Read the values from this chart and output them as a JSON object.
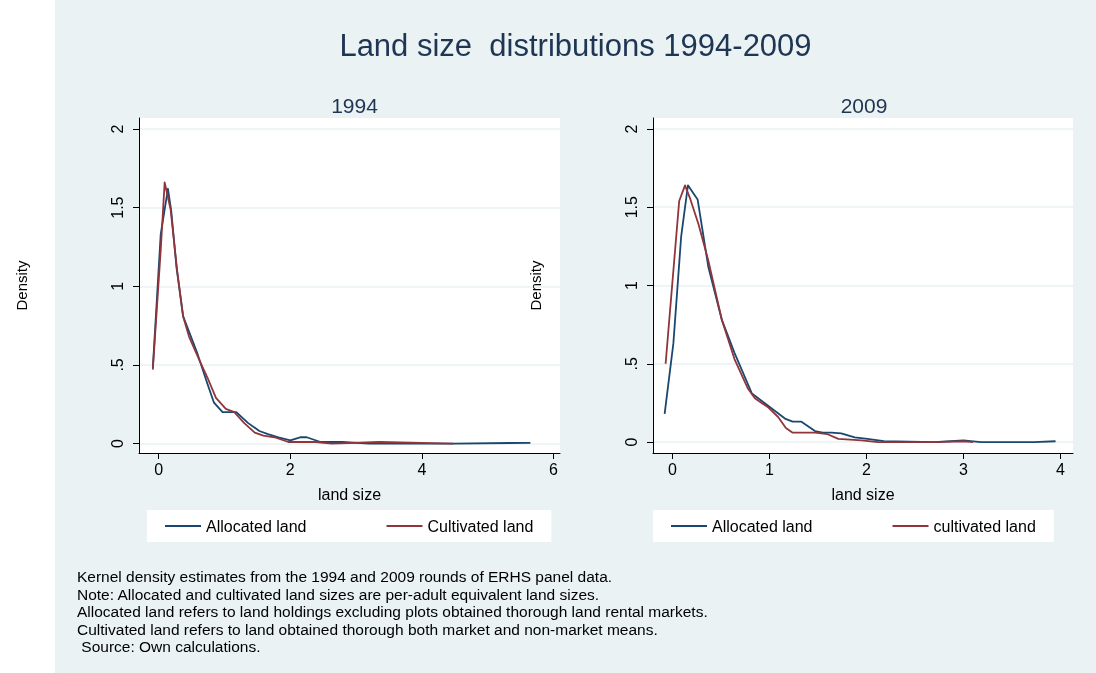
{
  "chart_data": [
    {
      "type": "other",
      "title": "Land size  distributions 1994-2009",
      "annotations": [
        "Kernel density estimates from the 1994 and 2009 rounds of ERHS panel data.",
        "Note: Allocated and cultivated land sizes are per-adult equivalent land sizes.",
        "Allocated land refers to land holdings excluding plots obtained thorough land rental markets.",
        "Cultivated land refers to land obtained thorough both market and non-market means.",
        " Source: Own calculations."
      ]
    },
    {
      "type": "line",
      "title": "1994",
      "xlabel": "land size",
      "ylabel": "Density",
      "xlim": [
        -0.3,
        6.1
      ],
      "xticks": [
        0,
        2,
        4,
        6
      ],
      "ylim": [
        -0.06,
        2.07
      ],
      "yticks": [
        0,
        {
          "value": 0.5,
          "label": ".5"
        },
        1,
        1.5,
        2
      ],
      "grid": "y",
      "legend": "bottom",
      "series": [
        {
          "name": "Allocated land",
          "color": "#1a476f",
          "x": [
            -0.09,
            0.03,
            0.14,
            0.19,
            0.27,
            0.37,
            0.59,
            0.74,
            0.84,
            0.97,
            1.18,
            1.36,
            1.53,
            1.66,
            1.82,
            2.0,
            2.15,
            2.25,
            2.46,
            2.79,
            3.2,
            4.48,
            5.65
          ],
          "values": [
            0.48,
            1.33,
            1.62,
            1.48,
            1.12,
            0.81,
            0.57,
            0.38,
            0.26,
            0.2,
            0.2,
            0.13,
            0.08,
            0.06,
            0.04,
            0.02,
            0.04,
            0.04,
            0.01,
            0.01,
            0,
            0,
            0.005
          ]
        },
        {
          "name": "Cultivated land",
          "color": "#90353b",
          "x": [
            -0.09,
            0.03,
            0.09,
            0.18,
            0.28,
            0.37,
            0.46,
            0.64,
            0.74,
            0.87,
            1.02,
            1.15,
            1.3,
            1.46,
            1.59,
            1.76,
            1.97,
            2.17,
            2.38,
            2.63,
            3.35,
            4.48
          ],
          "values": [
            0.47,
            1.23,
            1.66,
            1.49,
            1.1,
            0.81,
            0.68,
            0.51,
            0.42,
            0.29,
            0.22,
            0.2,
            0.13,
            0.07,
            0.05,
            0.04,
            0.01,
            0.01,
            0.01,
            0,
            0.01,
            0
          ]
        }
      ]
    },
    {
      "type": "line",
      "title": "2009",
      "xlabel": "land size",
      "ylabel": "Density",
      "xlim": [
        -0.2,
        4.13
      ],
      "xticks": [
        0,
        1,
        2,
        3,
        4
      ],
      "ylim": [
        -0.07,
        2.07
      ],
      "yticks": [
        0,
        {
          "value": 0.5,
          "label": ".5"
        },
        1,
        1.5,
        2
      ],
      "grid": "y",
      "legend": "bottom",
      "series": [
        {
          "name": "Allocated land",
          "color": "#1a476f",
          "x": [
            -0.08,
            0.01,
            0.09,
            0.16,
            0.26,
            0.37,
            0.51,
            0.64,
            0.82,
            0.99,
            1.16,
            1.24,
            1.33,
            1.47,
            1.55,
            1.64,
            1.74,
            1.88,
            2.01,
            2.18,
            2.7,
            3.0,
            3.18,
            3.55,
            3.73,
            3.95
          ],
          "values": [
            0.18,
            0.63,
            1.31,
            1.64,
            1.55,
            1.12,
            0.78,
            0.57,
            0.31,
            0.23,
            0.15,
            0.13,
            0.13,
            0.07,
            0.06,
            0.06,
            0.055,
            0.03,
            0.02,
            0.006,
            0,
            0.01,
            0,
            0,
            0,
            0.005
          ]
        },
        {
          "name": "cultivated land",
          "color": "#90353b",
          "x": [
            -0.07,
            0.07,
            0.13,
            0.18,
            0.27,
            0.37,
            0.51,
            0.64,
            0.78,
            0.85,
            0.99,
            1.09,
            1.17,
            1.24,
            1.33,
            1.47,
            1.6,
            1.71,
            1.95,
            2.12,
            2.7,
            3.0,
            3.1
          ],
          "values": [
            0.5,
            1.54,
            1.64,
            1.56,
            1.39,
            1.16,
            0.78,
            0.53,
            0.34,
            0.28,
            0.22,
            0.16,
            0.09,
            0.06,
            0.06,
            0.06,
            0.05,
            0.02,
            0.01,
            0,
            0,
            0.005,
            0
          ]
        }
      ]
    }
  ]
}
